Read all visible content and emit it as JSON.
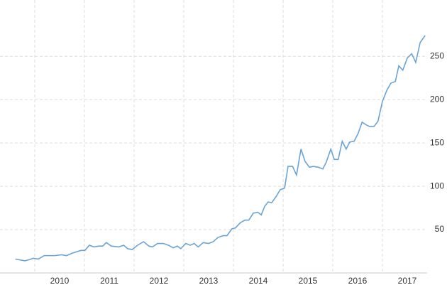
{
  "chart_data": {
    "type": "line",
    "x": [
      2009.61,
      2009.8,
      2009.9,
      2009.97,
      2010.07,
      2010.19,
      2010.4,
      2010.54,
      2010.64,
      2010.76,
      2010.93,
      2011.01,
      2011.1,
      2011.19,
      2011.29,
      2011.37,
      2011.44,
      2011.54,
      2011.69,
      2011.79,
      2011.87,
      2011.96,
      2012.07,
      2012.19,
      2012.3,
      2012.37,
      2012.47,
      2012.59,
      2012.69,
      2012.79,
      2012.87,
      2012.94,
      2013.04,
      2013.13,
      2013.21,
      2013.29,
      2013.39,
      2013.5,
      2013.59,
      2013.69,
      2013.79,
      2013.87,
      2013.97,
      2014.04,
      2014.14,
      2014.23,
      2014.31,
      2014.4,
      2014.49,
      2014.56,
      2014.63,
      2014.7,
      2014.77,
      2014.87,
      2014.94,
      2015.03,
      2015.1,
      2015.19,
      2015.27,
      2015.36,
      2015.44,
      2015.53,
      2015.61,
      2015.71,
      2015.8,
      2015.87,
      2015.96,
      2016.03,
      2016.11,
      2016.19,
      2016.27,
      2016.34,
      2016.43,
      2016.51,
      2016.59,
      2016.67,
      2016.74,
      2016.83,
      2016.91,
      2017.0,
      2017.09,
      2017.17,
      2017.26,
      2017.33,
      2017.41,
      2017.5,
      2017.59,
      2017.67,
      2017.76,
      2017.86
    ],
    "series": [
      {
        "color": "#6ba3d6",
        "values": [
          16,
          14,
          15.5,
          17,
          16,
          20,
          20,
          21,
          20,
          23,
          26,
          26,
          32,
          30,
          31,
          31,
          35,
          31,
          30,
          32,
          28,
          27,
          32,
          36,
          31,
          30,
          34,
          34,
          32,
          29,
          31,
          28,
          34,
          32,
          34,
          30,
          35,
          34,
          36,
          41,
          43,
          43,
          51,
          52,
          58,
          61,
          61,
          69,
          70,
          67,
          77,
          82,
          81,
          89,
          96,
          98,
          123,
          123,
          113,
          143,
          129,
          122,
          123,
          122,
          120,
          128,
          143,
          131,
          131,
          152,
          143,
          151,
          152,
          161,
          174,
          171,
          169,
          169,
          175,
          198,
          211,
          219,
          221,
          239,
          234,
          248,
          253,
          243,
          266,
          274
        ]
      }
    ],
    "xlim": [
      2009.3,
      2017.9
    ],
    "xticks": [
      {
        "value": 2010.5,
        "label": "2010"
      },
      {
        "value": 2011.5,
        "label": "2011"
      },
      {
        "value": 2012.5,
        "label": "2012"
      },
      {
        "value": 2013.5,
        "label": "2013"
      },
      {
        "value": 2014.5,
        "label": "2014"
      },
      {
        "value": 2015.5,
        "label": "2015"
      },
      {
        "value": 2016.5,
        "label": "2016"
      },
      {
        "value": 2017.5,
        "label": "2017"
      }
    ],
    "ylim": [
      0,
      315
    ],
    "yticks": [
      50,
      100,
      150,
      200,
      250
    ],
    "grid": true
  }
}
